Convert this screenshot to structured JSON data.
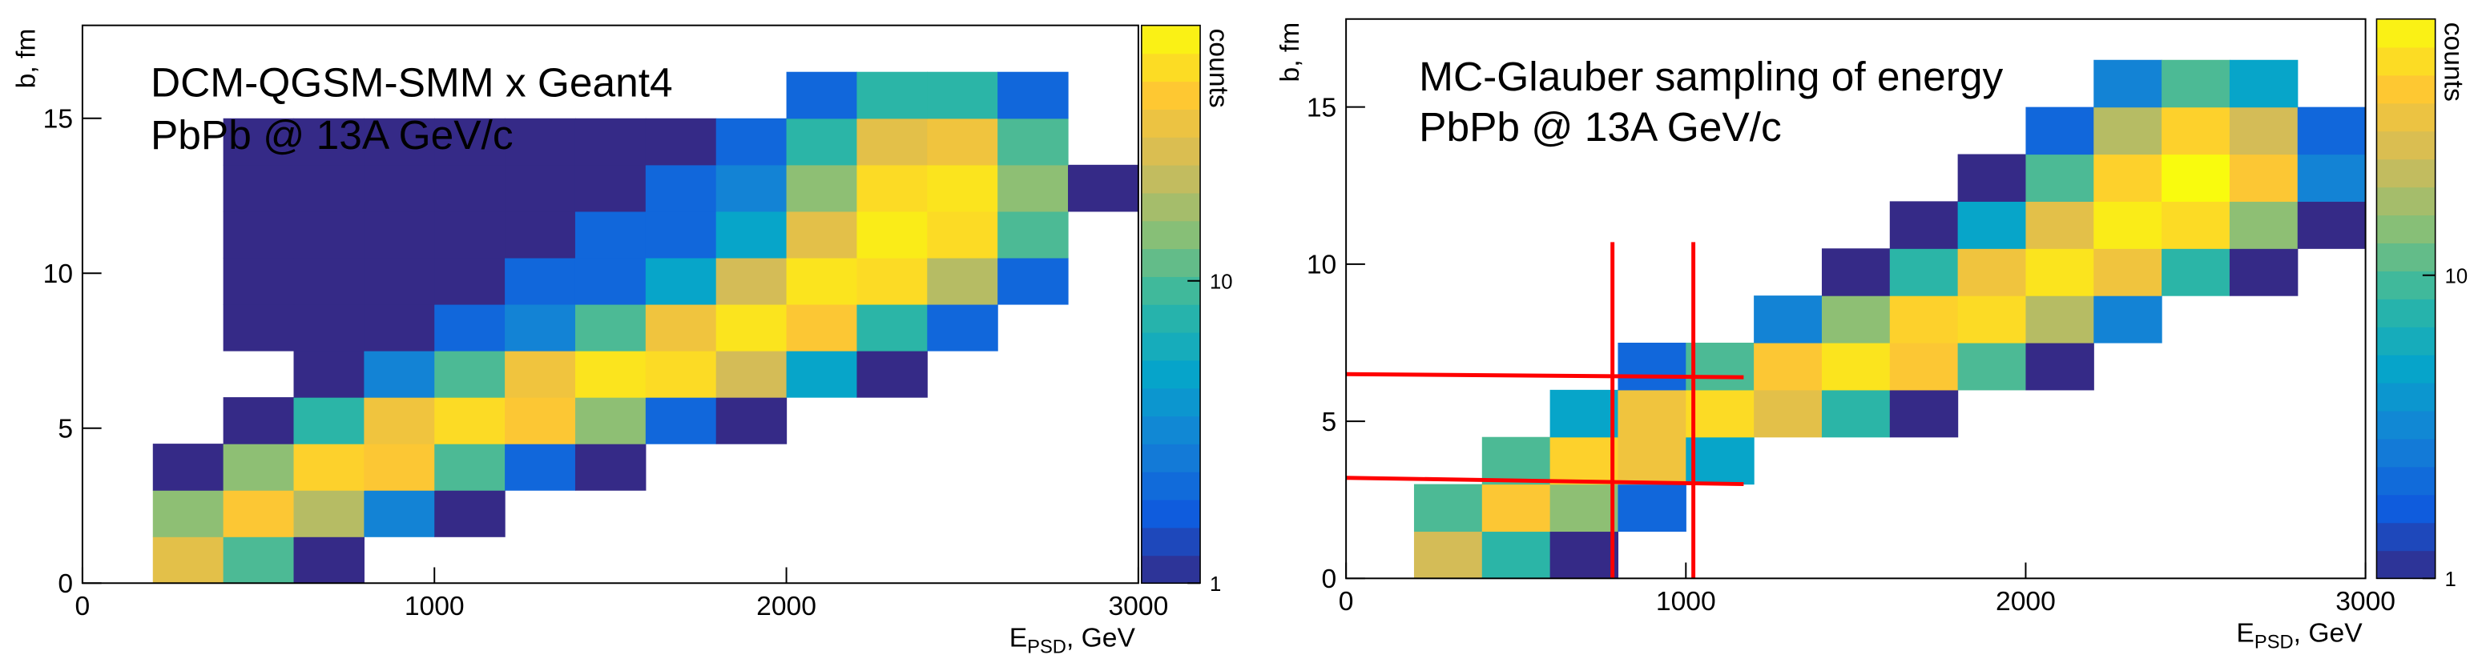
{
  "chart_data": [
    {
      "type": "heatmap",
      "annotation": [
        "DCM-QGSM-SMM x Geant4",
        "PbPb @ 13A GeV/c"
      ],
      "xlabel": [
        "E",
        "PSD",
        ", GeV"
      ],
      "ylabel": "b, fm",
      "zlabel": "counts",
      "xlim": [
        0,
        3000
      ],
      "ylim": [
        0,
        18
      ],
      "zlim": [
        1,
        70
      ],
      "zlog": true,
      "xticks": [
        0,
        1000,
        2000,
        3000
      ],
      "yticks": [
        0,
        5,
        10,
        15
      ],
      "zticks": [
        1,
        10
      ],
      "colorscale": [
        "#352a87",
        "#0f5cdd",
        "#1481d6",
        "#06a4ca",
        "#2eb7a4",
        "#87bf77",
        "#d1bb59",
        "#fec832",
        "#f9fb0e"
      ],
      "xbins": [
        0,
        200,
        400,
        600,
        800,
        1000,
        1200,
        1400,
        1600,
        1800,
        2000,
        2200,
        2400,
        2600,
        2800,
        3000
      ],
      "ybins": [
        0,
        1.5,
        3,
        4.5,
        6,
        7.5,
        9,
        10.5,
        12,
        13.5,
        15,
        16.5
      ],
      "values": [
        [
          0,
          30,
          10,
          1,
          0,
          0,
          0,
          0,
          0,
          0,
          0,
          0,
          0,
          0,
          0
        ],
        [
          0,
          15,
          40,
          20,
          3,
          1,
          0,
          0,
          0,
          0,
          0,
          0,
          0,
          0,
          0
        ],
        [
          0,
          1,
          15,
          45,
          40,
          10,
          2,
          1,
          0,
          0,
          0,
          0,
          0,
          0,
          0
        ],
        [
          0,
          0,
          1,
          8,
          35,
          50,
          40,
          15,
          2,
          1,
          0,
          0,
          0,
          0,
          0
        ],
        [
          0,
          0,
          0,
          1,
          3,
          10,
          35,
          55,
          50,
          25,
          5,
          1,
          0,
          0,
          0
        ],
        [
          0,
          0,
          1,
          1,
          1,
          2,
          3,
          10,
          35,
          55,
          40,
          8,
          2,
          0,
          0
        ],
        [
          0,
          0,
          1,
          1,
          1,
          1,
          2,
          2,
          5,
          25,
          55,
          50,
          20,
          2,
          0
        ],
        [
          0,
          0,
          1,
          1,
          1,
          1,
          1,
          2,
          2,
          5,
          30,
          60,
          50,
          10,
          0
        ],
        [
          0,
          0,
          1,
          1,
          1,
          1,
          1,
          1,
          2,
          3,
          15,
          50,
          55,
          15,
          1
        ],
        [
          0,
          0,
          1,
          1,
          1,
          1,
          1,
          1,
          1,
          2,
          8,
          30,
          35,
          10,
          0
        ],
        [
          0,
          0,
          0,
          0,
          0,
          0,
          0,
          0,
          0,
          0,
          2,
          8,
          8,
          2,
          0
        ]
      ]
    },
    {
      "type": "heatmap",
      "annotation": [
        "MC-Glauber sampling of energy",
        "PbPb @ 13A GeV/c"
      ],
      "xlabel": [
        "E",
        "PSD",
        ", GeV"
      ],
      "ylabel": "b, fm",
      "zlabel": "counts",
      "xlim": [
        0,
        3000
      ],
      "ylim": [
        0,
        17.8
      ],
      "zlim": [
        1,
        70
      ],
      "zlog": true,
      "xticks": [
        0,
        1000,
        2000,
        3000
      ],
      "yticks": [
        0,
        5,
        10,
        15
      ],
      "zticks": [
        1,
        10
      ],
      "colorscale": [
        "#352a87",
        "#0f5cdd",
        "#1481d6",
        "#06a4ca",
        "#2eb7a4",
        "#87bf77",
        "#d1bb59",
        "#fec832",
        "#f9fb0e"
      ],
      "xbins": [
        0,
        200,
        400,
        600,
        800,
        1000,
        1200,
        1400,
        1600,
        1800,
        2000,
        2200,
        2400,
        2600,
        2800,
        3000
      ],
      "ybins": [
        0,
        1.5,
        3,
        4.5,
        6,
        7.5,
        9,
        10.5,
        12,
        13.5,
        15,
        16.5
      ],
      "values": [
        [
          0,
          25,
          8,
          1,
          0,
          0,
          0,
          0,
          0,
          0,
          0,
          0,
          0,
          0,
          0
        ],
        [
          0,
          10,
          40,
          15,
          2,
          0,
          0,
          0,
          0,
          0,
          0,
          0,
          0,
          0,
          0
        ],
        [
          0,
          0,
          10,
          45,
          35,
          5,
          0,
          0,
          0,
          0,
          0,
          0,
          0,
          0,
          0
        ],
        [
          0,
          0,
          0,
          5,
          35,
          50,
          30,
          8,
          1,
          0,
          0,
          0,
          0,
          0,
          0
        ],
        [
          0,
          0,
          0,
          0,
          2,
          10,
          40,
          55,
          40,
          10,
          1,
          0,
          0,
          0,
          0
        ],
        [
          0,
          0,
          0,
          0,
          0,
          0,
          3,
          15,
          45,
          50,
          20,
          3,
          0,
          0,
          0
        ],
        [
          0,
          0,
          0,
          0,
          0,
          0,
          0,
          1,
          8,
          35,
          55,
          35,
          8,
          1,
          0
        ],
        [
          0,
          0,
          0,
          0,
          0,
          0,
          0,
          0,
          1,
          5,
          30,
          60,
          50,
          15,
          1
        ],
        [
          0,
          0,
          0,
          0,
          0,
          0,
          0,
          0,
          0,
          1,
          10,
          45,
          70,
          40,
          3
        ],
        [
          0,
          0,
          0,
          0,
          0,
          0,
          0,
          0,
          0,
          0,
          2,
          20,
          45,
          25,
          2
        ],
        [
          0,
          0,
          0,
          0,
          0,
          0,
          0,
          0,
          0,
          0,
          0,
          3,
          10,
          5,
          0
        ]
      ],
      "line_color": "#ff0000",
      "lines": [
        {
          "x": [
            784,
            784
          ],
          "y": [
            0,
            10.7
          ]
        },
        {
          "x": [
            1022,
            1022
          ],
          "y": [
            0,
            10.7
          ]
        },
        {
          "x": [
            0,
            1170
          ],
          "y": [
            6.5,
            6.4
          ]
        },
        {
          "x": [
            0,
            1170
          ],
          "y": [
            3.2,
            3.0
          ]
        }
      ]
    }
  ]
}
